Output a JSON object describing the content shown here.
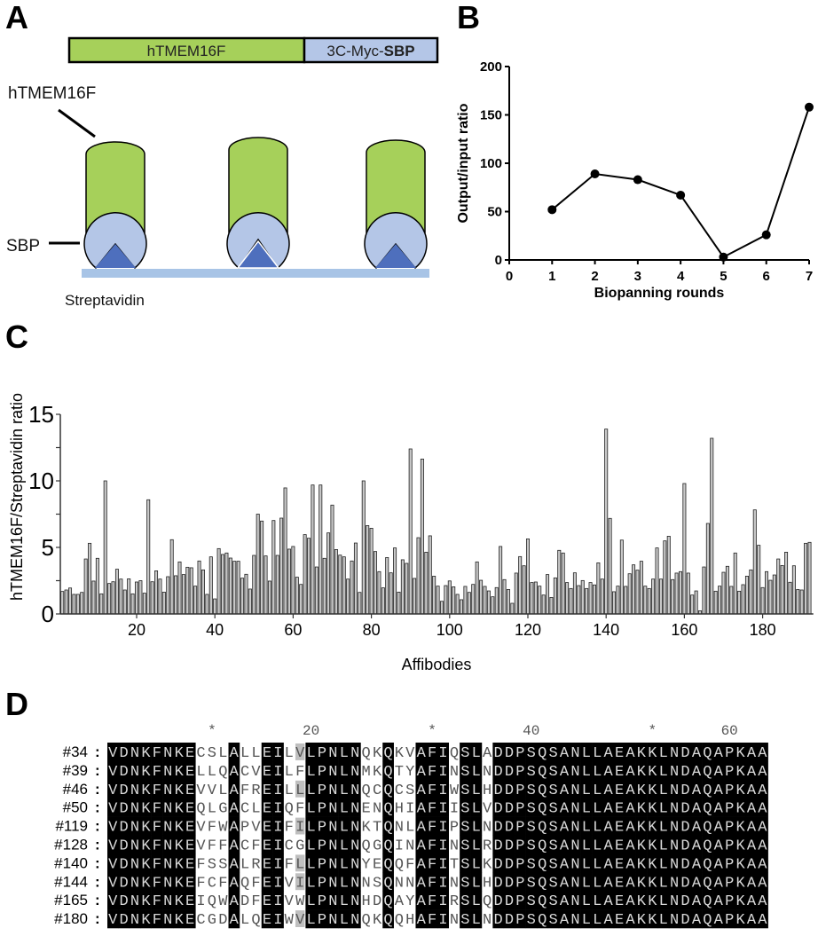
{
  "panels": {
    "a": "A",
    "b": "B",
    "c": "C",
    "d": "D"
  },
  "panel_a": {
    "construct_left": "hTMEM16F",
    "construct_right_prefix": "3C-Myc-",
    "construct_right_bold": "SBP",
    "label_protein": "hTMEM16F",
    "label_sbp": "SBP",
    "label_streptavidin": "Streptavidin",
    "colors": {
      "green": "#a6d05a",
      "light_blue": "#b4c6e7",
      "dark_blue": "#4e6fbd",
      "bar": "#a8c4e6"
    }
  },
  "chart_data": [
    {
      "type": "line",
      "panel": "B",
      "xlabel": "Biopanning rounds",
      "ylabel": "Output/input ratio",
      "x": [
        1,
        2,
        3,
        4,
        5,
        6,
        7
      ],
      "y": [
        52,
        89,
        83,
        67,
        3,
        26,
        158
      ],
      "xlim": [
        0,
        7
      ],
      "ylim": [
        0,
        200
      ],
      "xticks": [
        "0",
        "1",
        "2",
        "3",
        "4",
        "5",
        "6",
        "7"
      ],
      "yticks": [
        "0",
        "50",
        "100",
        "150",
        "200"
      ],
      "grid": false
    },
    {
      "type": "bar",
      "panel": "C",
      "xlabel": "Affibodies",
      "ylabel": "hTMEM16F/Streptavidin ratio",
      "ylim": [
        0,
        15
      ],
      "yticks": [
        "0",
        "5",
        "10",
        "15"
      ],
      "xticks": [
        "20",
        "40",
        "60",
        "80",
        "100",
        "120",
        "140",
        "160",
        "180"
      ],
      "grid": false,
      "values": [
        1.69,
        1.8,
        1.95,
        1.47,
        1.47,
        1.62,
        4.13,
        5.31,
        2.47,
        4.18,
        1.51,
        10.0,
        2.29,
        2.42,
        3.36,
        2.62,
        1.8,
        2.64,
        1.51,
        2.4,
        2.5,
        1.56,
        8.58,
        2.42,
        3.24,
        2.62,
        1.64,
        2.8,
        5.58,
        2.87,
        3.91,
        2.96,
        3.51,
        3.47,
        2.09,
        3.98,
        3.31,
        1.47,
        4.29,
        1.13,
        4.91,
        4.47,
        4.58,
        4.2,
        3.96,
        3.96,
        2.69,
        2.98,
        1.87,
        4.4,
        7.5,
        6.98,
        4.36,
        2.47,
        7.02,
        4.4,
        7.2,
        9.47,
        4.87,
        5.07,
        2.76,
        2.22,
        5.96,
        5.69,
        9.69,
        3.53,
        9.69,
        4.18,
        6.09,
        8.18,
        4.84,
        4.42,
        4.29,
        2.62,
        3.98,
        5.33,
        1.62,
        10.0,
        6.64,
        6.44,
        4.69,
        3.18,
        1.96,
        4.24,
        3.09,
        4.96,
        1.64,
        4.07,
        3.8,
        12.4,
        2.67,
        5.73,
        11.64,
        4.64,
        5.87,
        2.84,
        2.09,
        0.95,
        2.13,
        2.48,
        2.04,
        1.47,
        1.07,
        2.07,
        1.62,
        2.22,
        3.91,
        2.53,
        2.07,
        1.73,
        1.29,
        1.98,
        5.07,
        2.58,
        1.84,
        0.8,
        3.07,
        4.31,
        3.62,
        5.64,
        2.36,
        2.4,
        2.09,
        1.42,
        2.96,
        1.24,
        2.71,
        4.78,
        4.58,
        2.36,
        1.91,
        3.09,
        2.13,
        2.51,
        1.91,
        2.36,
        2.18,
        3.84,
        2.62,
        13.89,
        7.18,
        1.67,
        2.09,
        5.55,
        2.07,
        3.02,
        3.69,
        3.29,
        3.96,
        2.09,
        1.91,
        2.62,
        4.96,
        2.62,
        5.49,
        5.84,
        2.58,
        3.07,
        3.18,
        9.8,
        3.07,
        1.42,
        1.73,
        0.24,
        3.53,
        6.8,
        13.2,
        1.71,
        2.09,
        3.13,
        3.58,
        2.07,
        4.58,
        1.71,
        2.2,
        2.84,
        3.31,
        7.82,
        5.16,
        1.98,
        3.18,
        2.53,
        2.93,
        4.13,
        3.64,
        4.64,
        2.38,
        3.62,
        1.84,
        1.8,
        5.31,
        5.38
      ]
    }
  ],
  "alignment": {
    "ruler": [
      {
        "label": "*",
        "col": 10
      },
      {
        "label": "20",
        "col": 19
      },
      {
        "label": "*",
        "col": 30
      },
      {
        "label": "40",
        "col": 39
      },
      {
        "label": "*",
        "col": 50
      },
      {
        "label": "60",
        "col": 57
      }
    ],
    "separator": ":",
    "rows": [
      {
        "id": "#34",
        "seq": "VDNKFNKECSLALLEILVLPNLNQKQKVAFIQSLADDPSQSANLLAEAKKLNDAQAPKAA"
      },
      {
        "id": "#39",
        "seq": "VDNKFNKELLQACVEILFLPNLNMKQTYAFINSLNDDPSQSANLLAEAKKLNDAQAPKAA"
      },
      {
        "id": "#46",
        "seq": "VDNKFNKEVVLAFREILLLPNLNQCQCSAFIWSLHDDPSQSANLLAEAKKLNDAQAPKAA"
      },
      {
        "id": "#50",
        "seq": "VDNKFNKEQLGACLEIQFLPNLNENQHIAFIISLVDDPSQSANLLAEAKKLNDAQAPKAA"
      },
      {
        "id": "#119",
        "seq": "VDNKFNKEVFWAPVEIFILPNLNKTQNLAFIPSLNDDPSQSANLLAEAKKLNDAQAPKAA"
      },
      {
        "id": "#128",
        "seq": "VDNKFNKEVFFACFEICGLPNLNQGQINAFINSLRDDPSQSANLLAEAKKLNDAQAPKAA"
      },
      {
        "id": "#140",
        "seq": "VDNKFNKEFSSALREIFLLPNLNYEQQFAFITSLKDDPSQSANLLAEAKKLNDAQAPKAA"
      },
      {
        "id": "#144",
        "seq": "VDNKFNKEFCFAQFEIVILPNLNNSQNNAFINSLHDDPSQSANLLAEAKKLNDAQAPKAA"
      },
      {
        "id": "#165",
        "seq": "VDNKFNKEIQWADFEIVWLPNLNHDQAYAFIRSLQDDPSQSANLLAEAKKLNDAQAPKAA"
      },
      {
        "id": "#180",
        "seq": "VDNKFNKECGDALQEIWVLPNLNQKQQHAFINSLNDDPSQSANLLAEAKKLNDAQAPKAA"
      }
    ],
    "similar_cells": [
      [
        0,
        18
      ],
      [
        2,
        18
      ],
      [
        4,
        18
      ],
      [
        6,
        18
      ],
      [
        7,
        18
      ],
      [
        9,
        18
      ]
    ],
    "colors": {
      "conserved_bg": "#000000",
      "conserved_fg": "#d9d9d9",
      "similar_bg": "#bfbfbf",
      "plain_fg": "#555555"
    }
  }
}
